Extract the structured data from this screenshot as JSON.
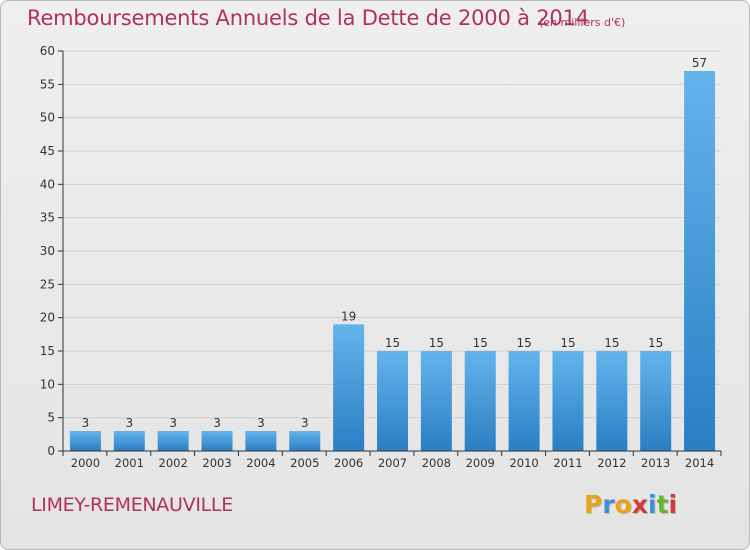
{
  "header": {
    "title": "Remboursements Annuels de la Dette de 2000 à 2014",
    "unit": "(en milliers d'€)"
  },
  "footer": {
    "commune": "LIMEY-REMENAUVILLE",
    "logo_letters": [
      "P",
      "r",
      "o",
      "x",
      "i",
      "t",
      "i"
    ],
    "logo_colors": [
      "#e8a317",
      "#3a8fd6",
      "#e8a317",
      "#d23b3b",
      "#3a8fd6",
      "#6ab42c",
      "#d23b3b"
    ]
  },
  "colors": {
    "bar_top": "#64b4ec",
    "bar_bottom": "#2a7ec2",
    "title": "#b03060",
    "axis": "#333333",
    "grid": "#d2d2d2"
  },
  "chart_data": {
    "type": "bar",
    "title": "Remboursements Annuels de la Dette de 2000 à 2014",
    "subtitle": "(en milliers d'€)",
    "xlabel": "",
    "ylabel": "",
    "categories": [
      "2000",
      "2001",
      "2002",
      "2003",
      "2004",
      "2005",
      "2006",
      "2007",
      "2008",
      "2009",
      "2010",
      "2011",
      "2012",
      "2013",
      "2014"
    ],
    "values": [
      3,
      3,
      3,
      3,
      3,
      3,
      19,
      15,
      15,
      15,
      15,
      15,
      15,
      15,
      57
    ],
    "ylim": [
      0,
      60
    ],
    "yticks": [
      0,
      5,
      10,
      15,
      20,
      25,
      30,
      35,
      40,
      45,
      50,
      55,
      60
    ],
    "grid": true,
    "legend": "none"
  }
}
